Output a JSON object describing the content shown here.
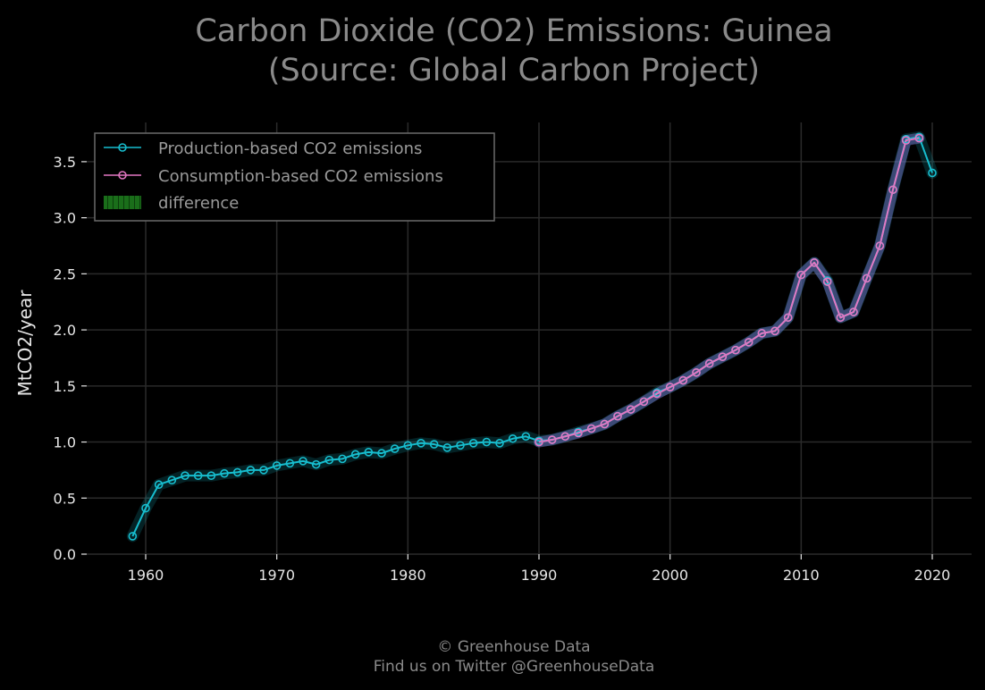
{
  "chart_data": {
    "type": "line",
    "title_line1": "Carbon Dioxide (CO2) Emissions: Guinea",
    "title_line2": "(Source: Global Carbon Project)",
    "xlabel": "",
    "ylabel": "MtCO2/year",
    "xlim": [
      1955.5,
      2023
    ],
    "ylim": [
      0,
      3.85
    ],
    "xticks": [
      1960,
      1970,
      1980,
      1990,
      2000,
      2010,
      2020
    ],
    "yticks": [
      0.0,
      0.5,
      1.0,
      1.5,
      2.0,
      2.5,
      3.0,
      3.5
    ],
    "ytick_labels": [
      "0.0",
      "0.5",
      "1.0",
      "1.5",
      "2.0",
      "2.5",
      "3.0",
      "3.5"
    ],
    "grid": true,
    "legend_position": "upper-left",
    "colors": {
      "background": "#000000",
      "grid": "#2a2a2a",
      "production": "#17becf",
      "consumption": "#e377c2",
      "difference": "#1a6e1a",
      "glow": "#6a6ab8"
    },
    "series": [
      {
        "name": "Production-based CO2 emissions",
        "x": [
          1959,
          1960,
          1961,
          1962,
          1963,
          1964,
          1965,
          1966,
          1967,
          1968,
          1969,
          1970,
          1971,
          1972,
          1973,
          1974,
          1975,
          1976,
          1977,
          1978,
          1979,
          1980,
          1981,
          1982,
          1983,
          1984,
          1985,
          1986,
          1987,
          1988,
          1989,
          1990,
          1991,
          1992,
          1993,
          1994,
          1995,
          1996,
          1997,
          1998,
          1999,
          2000,
          2001,
          2002,
          2003,
          2004,
          2005,
          2006,
          2007,
          2008,
          2009,
          2010,
          2011,
          2012,
          2013,
          2014,
          2015,
          2016,
          2017,
          2018,
          2019,
          2020
        ],
        "values": [
          0.16,
          0.41,
          0.62,
          0.66,
          0.7,
          0.7,
          0.7,
          0.72,
          0.73,
          0.75,
          0.75,
          0.79,
          0.81,
          0.83,
          0.8,
          0.84,
          0.85,
          0.89,
          0.91,
          0.9,
          0.94,
          0.97,
          0.99,
          0.98,
          0.95,
          0.97,
          0.99,
          1.0,
          0.99,
          1.03,
          1.05,
          1.01,
          1.02,
          1.05,
          1.09,
          1.12,
          1.16,
          1.23,
          1.29,
          1.36,
          1.44,
          1.49,
          1.55,
          1.62,
          1.7,
          1.76,
          1.82,
          1.89,
          1.97,
          1.99,
          2.11,
          2.49,
          2.6,
          2.44,
          2.11,
          2.16,
          2.46,
          2.75,
          3.25,
          3.7,
          3.72,
          3.4
        ]
      },
      {
        "name": "Consumption-based CO2 emissions",
        "x": [
          1990,
          1991,
          1992,
          1993,
          1994,
          1995,
          1996,
          1997,
          1998,
          1999,
          2000,
          2001,
          2002,
          2003,
          2004,
          2005,
          2006,
          2007,
          2008,
          2009,
          2010,
          2011,
          2012,
          2013,
          2014,
          2015,
          2016,
          2017,
          2018,
          2019
        ],
        "values": [
          1.0,
          1.02,
          1.05,
          1.08,
          1.12,
          1.16,
          1.23,
          1.29,
          1.36,
          1.43,
          1.49,
          1.55,
          1.62,
          1.7,
          1.76,
          1.82,
          1.89,
          1.97,
          1.99,
          2.11,
          2.49,
          2.6,
          2.43,
          2.11,
          2.16,
          2.46,
          2.75,
          3.25,
          3.69,
          3.71
        ]
      }
    ],
    "legend": [
      {
        "label": "Production-based CO2 emissions",
        "kind": "line",
        "color": "#17becf"
      },
      {
        "label": "Consumption-based CO2 emissions",
        "kind": "line",
        "color": "#e377c2"
      },
      {
        "label": "difference",
        "kind": "patch",
        "color": "#1a6e1a"
      }
    ],
    "footer_line1": "© Greenhouse Data",
    "footer_line2": "Find us on Twitter @GreenhouseData"
  }
}
